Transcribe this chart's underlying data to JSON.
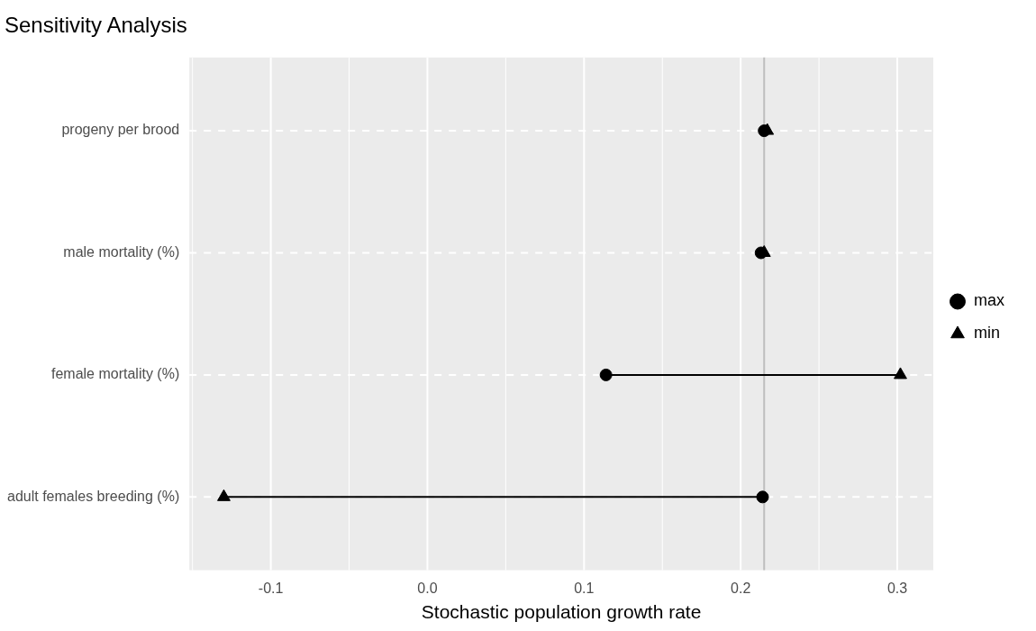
{
  "chart_data": {
    "type": "scatter",
    "title": "Sensitivity Analysis",
    "xlabel": "Stochastic population growth rate",
    "orientation": "horizontal",
    "categories": [
      "progeny per brood",
      "male mortality (%)",
      "female mortality (%)",
      "adult females breeding (%)"
    ],
    "series": [
      {
        "name": "max",
        "color": "#000000",
        "marker": "circle",
        "values": [
          0.215,
          0.213,
          0.114,
          0.214
        ]
      },
      {
        "name": "min",
        "color": "#000000",
        "marker": "triangle",
        "values": [
          0.217,
          0.215,
          0.302,
          -0.13
        ]
      }
    ],
    "xlim": [
      -0.152,
      0.323
    ],
    "xticks": [
      -0.1,
      {
        "value": 0,
        "label": "0.0"
      },
      0.1,
      0.2,
      0.3
    ],
    "ref_lines": [
      {
        "axis": "x",
        "value": 0.215,
        "color": "#bebebe"
      }
    ],
    "grid": true,
    "legend": "right"
  }
}
